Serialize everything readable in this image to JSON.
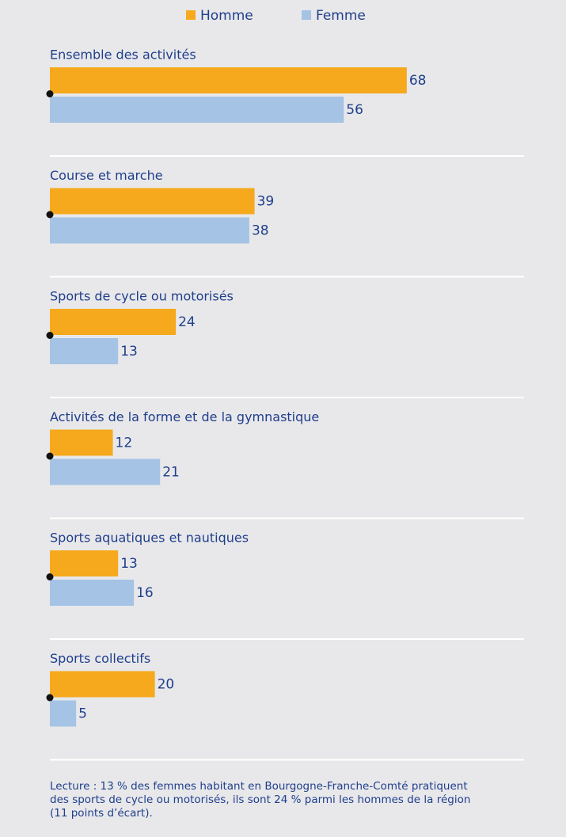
{
  "chart_data": {
    "type": "bar",
    "categories": [
      "Ensemble des activités",
      "Course et marche",
      "Sports de cycle ou motorisés",
      "Activités de la forme et de la gymnastique",
      "Sports aquatiques et nautiques",
      "Sports collectifs"
    ],
    "series": [
      {
        "name": "Homme",
        "color": "#f6a91d",
        "values": [
          68,
          39,
          24,
          12,
          13,
          20
        ]
      },
      {
        "name": "Femme",
        "color": "#a5c3e4",
        "values": [
          56,
          38,
          13,
          21,
          16,
          5
        ]
      }
    ],
    "note": "Lecture : 13 % des femmes habitant en Bourgogne-Franche-Comté pratiquent des sports de cycle ou motorisés, ils sont 24 % parmi les hommes de la région (11 points d’écart)."
  }
}
